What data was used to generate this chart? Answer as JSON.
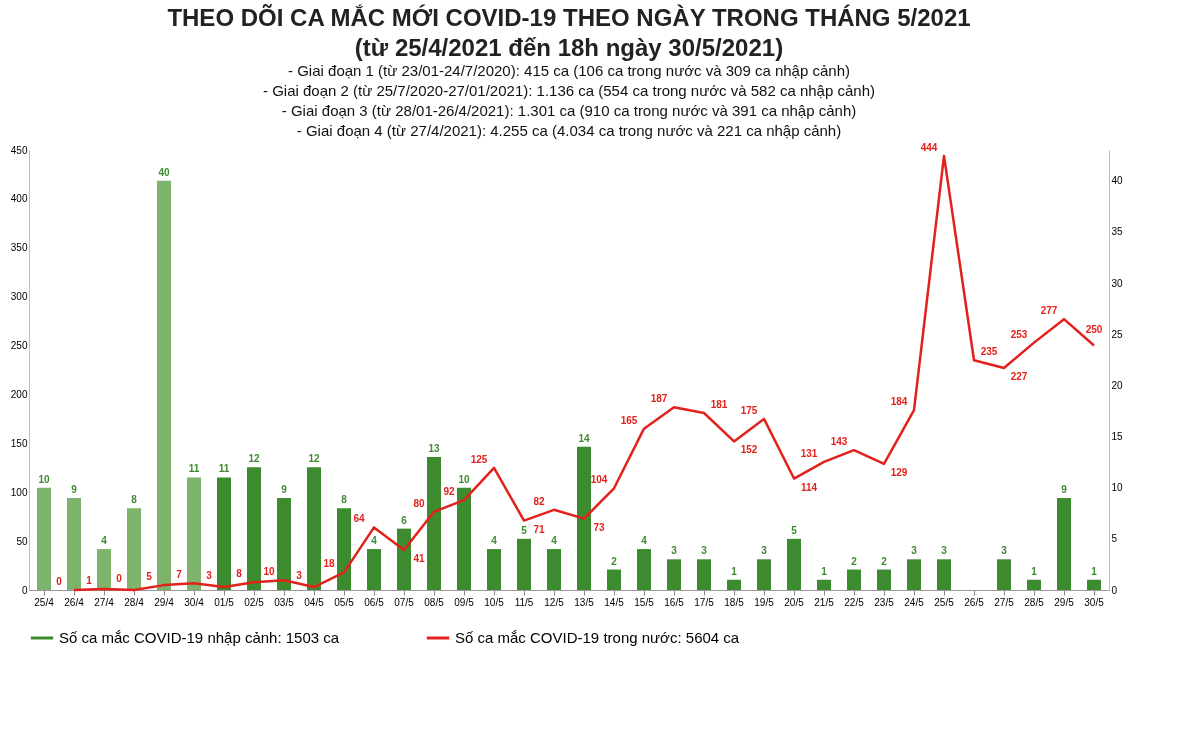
{
  "chart_data": {
    "type": "bar",
    "title": "THEO DÕI CA MẮC MỚI COVID-19 THEO NGÀY TRONG THÁNG 5/2021",
    "subtitle": "(từ 25/4/2021 đến 18h ngày 30/5/2021)",
    "annotations": [
      "- Giai đoạn 1 (từ 23/01-24/7/2020): 415 ca (106 ca trong nước và 309 ca nhập cảnh)",
      "- Giai đoạn 2 (từ 25/7/2020-27/01/2021): 1.136 ca (554 ca trong nước và 582 ca nhập cảnh)",
      "- Giai đoạn 3 (từ 28/01-26/4/2021): 1.301 ca (910 ca trong nước và 391 ca nhập cảnh)",
      "- Giai đoạn 4 (từ 27/4/2021): 4.255 ca (4.034 ca trong nước và 221 ca nhập cảnh)"
    ],
    "categories": [
      "25/4",
      "26/4",
      "27/4",
      "28/4",
      "29/4",
      "30/4",
      "01/5",
      "02/5",
      "03/5",
      "04/5",
      "05/5",
      "06/5",
      "07/5",
      "08/5",
      "09/5",
      "10/5",
      "11/5",
      "12/5",
      "13/5",
      "14/5",
      "15/5",
      "16/5",
      "17/5",
      "18/5",
      "19/5",
      "20/5",
      "21/5",
      "22/5",
      "23/5",
      "24/5",
      "25/5",
      "26/5",
      "27/5",
      "28/5",
      "29/5",
      "30/5"
    ],
    "series": [
      {
        "name": "Số ca mắc COVID-19 nhập cảnh: 1503 ca",
        "axis": "y2",
        "color": "#3d8b2f",
        "colors": [
          "#7db36a",
          "#7db36a",
          "#7db36a",
          "#7db36a",
          "#7db36a",
          "#7db36a",
          "#3d8b2f",
          "#3d8b2f",
          "#3d8b2f",
          "#3d8b2f",
          "#3d8b2f",
          "#3d8b2f",
          "#3d8b2f",
          "#3d8b2f",
          "#3d8b2f",
          "#3d8b2f",
          "#3d8b2f",
          "#3d8b2f",
          "#3d8b2f",
          "#3d8b2f",
          "#3d8b2f",
          "#3d8b2f",
          "#3d8b2f",
          "#3d8b2f",
          "#3d8b2f",
          "#3d8b2f",
          "#3d8b2f",
          "#3d8b2f",
          "#3d8b2f",
          "#3d8b2f",
          "#3d8b2f",
          "#3d8b2f",
          "#3d8b2f",
          "#3d8b2f",
          "#3d8b2f",
          "#3d8b2f"
        ],
        "values": [
          10,
          9,
          4,
          8,
          40,
          11,
          11,
          12,
          9,
          12,
          8,
          4,
          6,
          13,
          10,
          4,
          5,
          4,
          14,
          2,
          4,
          3,
          3,
          1,
          3,
          5,
          1,
          2,
          2,
          3,
          3,
          null,
          3,
          1,
          9,
          1
        ]
      },
      {
        "name": "Số ca mắc COVID-19 trong nước: 5604 ca",
        "type": "line",
        "color": "#e3211c",
        "values": [
          null,
          0,
          1,
          0,
          5,
          7,
          3,
          8,
          10,
          3,
          18,
          64,
          41,
          80,
          92,
          125,
          71,
          82,
          73,
          104,
          165,
          187,
          181,
          152,
          175,
          114,
          131,
          143,
          129,
          184,
          444,
          235,
          227,
          253,
          277,
          250
        ]
      }
    ],
    "ylim": [
      0,
      450
    ],
    "yticks": [
      0,
      50,
      100,
      150,
      200,
      250,
      300,
      350,
      400,
      450
    ],
    "y2lim": [
      0,
      43
    ],
    "y2ticks": [
      0,
      5,
      10,
      15,
      20,
      25,
      30,
      35,
      40
    ],
    "data_labels": true,
    "legend": "bottom"
  }
}
